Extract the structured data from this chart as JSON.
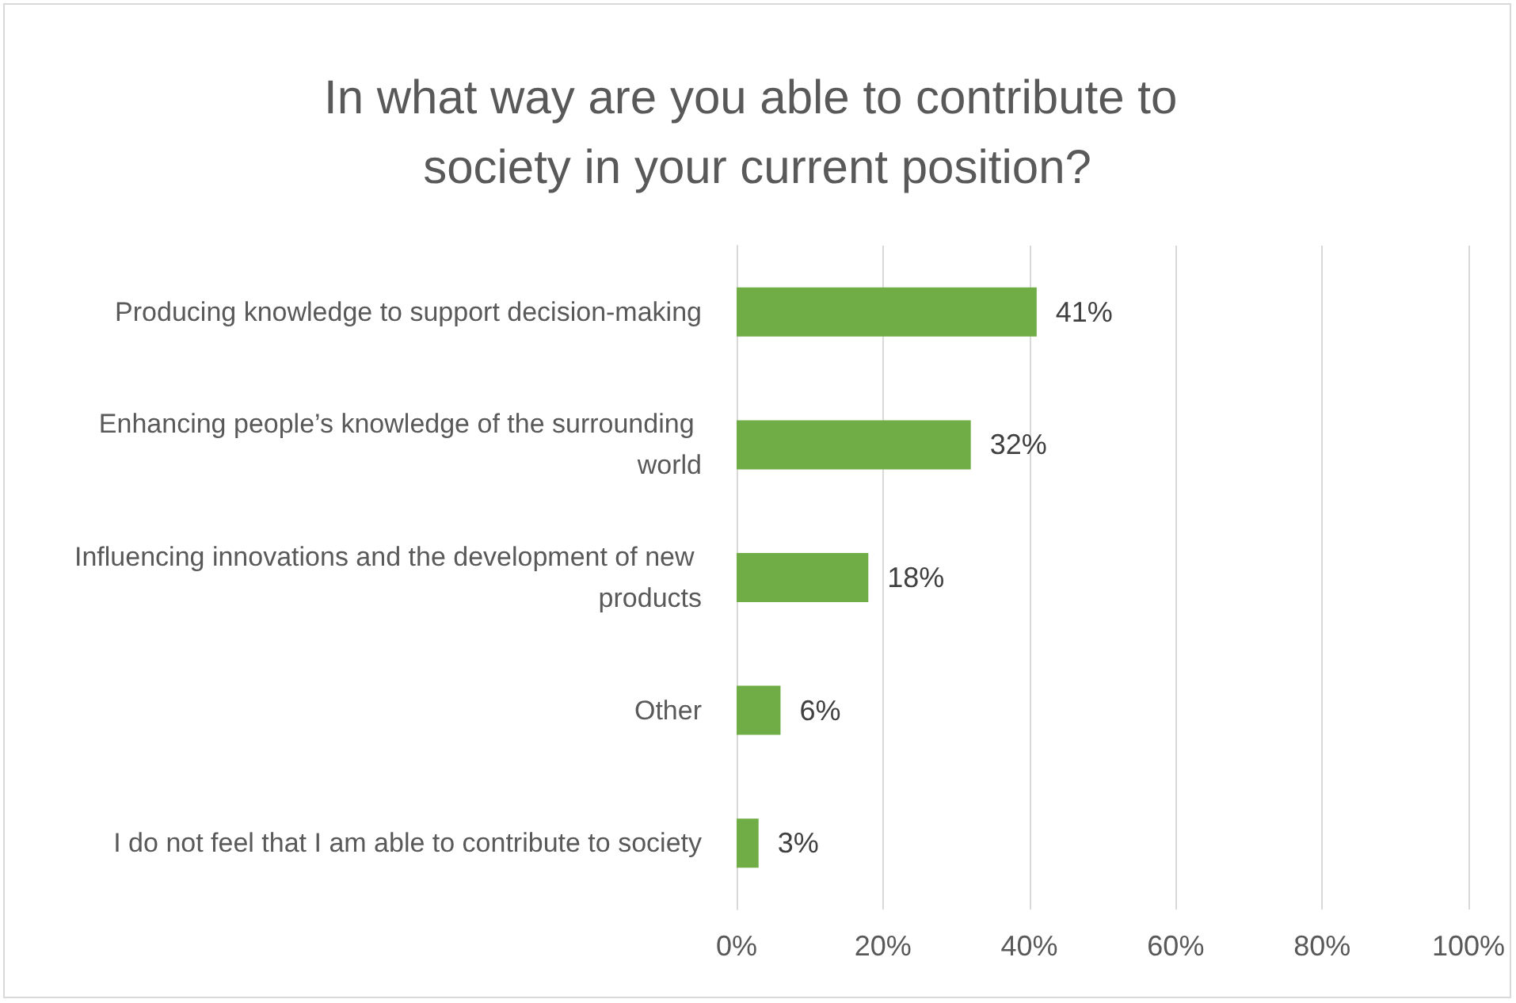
{
  "chart_data": {
    "type": "bar",
    "orientation": "horizontal",
    "title": "In what way are you able to contribute to society in your current position?",
    "categories": [
      "Producing knowledge to support decision-making",
      "Enhancing people’s knowledge of the surrounding world",
      "Influencing innovations and the development of new products",
      "Other",
      "I do not feel that I am able to contribute to society"
    ],
    "values": [
      41,
      32,
      18,
      6,
      3
    ],
    "value_labels": [
      "41%",
      "32%",
      "18%",
      "6%",
      "3%"
    ],
    "color": "#70ad47",
    "xlim": [
      0,
      100
    ],
    "xticks": [
      {
        "value": 0,
        "label": "0%"
      },
      {
        "value": 20,
        "label": "20%"
      },
      {
        "value": 40,
        "label": "40%"
      },
      {
        "value": 60,
        "label": "60%"
      },
      {
        "value": 80,
        "label": "80%"
      },
      {
        "value": 100,
        "label": "100%"
      }
    ],
    "grid": "x"
  }
}
